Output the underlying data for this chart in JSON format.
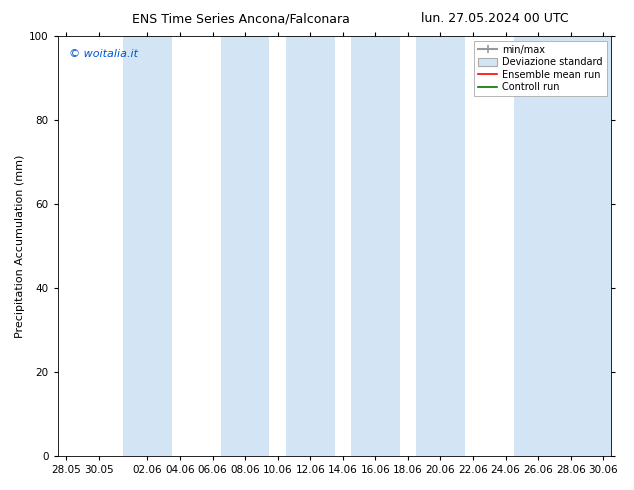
{
  "title_left": "ENS Time Series Ancona/Falconara",
  "title_right": "lun. 27.05.2024 00 UTC",
  "ylabel": "Precipitation Accumulation (mm)",
  "watermark": "© woitalia.it",
  "ylim": [
    0,
    100
  ],
  "yticks": [
    0,
    20,
    40,
    60,
    80,
    100
  ],
  "x_tick_labels": [
    "28.05",
    "30.05",
    "02.06",
    "04.06",
    "06.06",
    "08.06",
    "10.06",
    "12.06",
    "14.06",
    "16.06",
    "18.06",
    "20.06",
    "22.06",
    "24.06",
    "26.06",
    "28.06",
    "30.06"
  ],
  "x_tick_positions": [
    0,
    2,
    5,
    7,
    9,
    11,
    13,
    15,
    17,
    19,
    21,
    23,
    25,
    27,
    29,
    31,
    33
  ],
  "shaded_bands": [
    {
      "x_start": 4.0,
      "x_end": 5.0,
      "type": "minmax"
    },
    {
      "x_start": 5.0,
      "x_end": 6.0,
      "type": "std"
    },
    {
      "x_start": 10.0,
      "x_end": 11.0,
      "type": "minmax"
    },
    {
      "x_start": 11.0,
      "x_end": 12.0,
      "type": "std"
    },
    {
      "x_start": 14.0,
      "x_end": 15.0,
      "type": "minmax"
    },
    {
      "x_start": 15.0,
      "x_end": 16.0,
      "type": "std"
    },
    {
      "x_start": 18.0,
      "x_end": 19.0,
      "type": "minmax"
    },
    {
      "x_start": 19.0,
      "x_end": 20.0,
      "type": "std"
    },
    {
      "x_start": 22.0,
      "x_end": 23.5,
      "type": "minmax"
    },
    {
      "x_start": 28.5,
      "x_end": 30.0,
      "type": "minmax"
    },
    {
      "x_start": 30.0,
      "x_end": 33.5,
      "type": "std"
    }
  ],
  "band_color_minmax": "#ccddf0",
  "band_color_std": "#ddeaf8",
  "minmax_line_color": "#8aafcc",
  "std_fill_color": "#c5d8eb",
  "mean_color": "#ff0000",
  "control_color": "#007700",
  "legend_labels": [
    "min/max",
    "Deviazione standard",
    "Ensemble mean run",
    "Controll run"
  ],
  "watermark_color": "#0055cc",
  "background_color": "#ffffff",
  "title_fontsize": 9,
  "tick_fontsize": 7.5,
  "ylabel_fontsize": 8,
  "legend_fontsize": 7
}
